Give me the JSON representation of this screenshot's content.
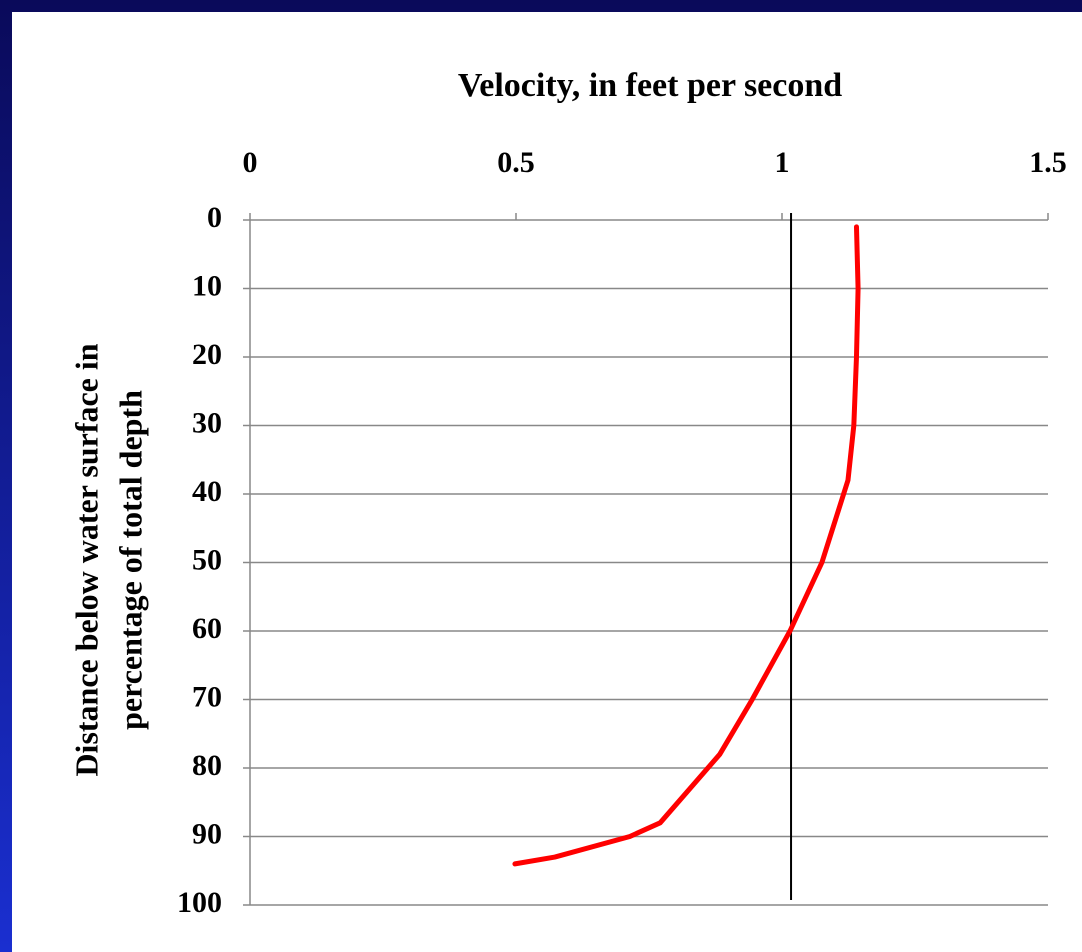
{
  "chart_data": {
    "type": "line",
    "x_label": "Velocity, in feet per second",
    "y_label": [
      "Distance below water surface in",
      "percentage of total depth"
    ],
    "xlim": [
      0,
      1.5
    ],
    "xticks": [
      0,
      0.5,
      1,
      1.5
    ],
    "ylim": [
      0,
      100
    ],
    "yticks": [
      0,
      10,
      20,
      30,
      40,
      50,
      60,
      70,
      80,
      90,
      100
    ],
    "y_inverted": true,
    "x_axis_position": "top",
    "grid": true,
    "color": "#ff0000",
    "x": [
      1.14,
      1.143,
      1.14,
      1.135,
      1.124,
      1.075,
      1.015,
      0.944,
      0.883,
      0.771,
      0.714,
      0.573,
      0.498
    ],
    "y": [
      1,
      10,
      20,
      30,
      38,
      50,
      60,
      70,
      78,
      88,
      90,
      93,
      94
    ],
    "reference_x": 1.017,
    "reference_color": "#000000"
  }
}
